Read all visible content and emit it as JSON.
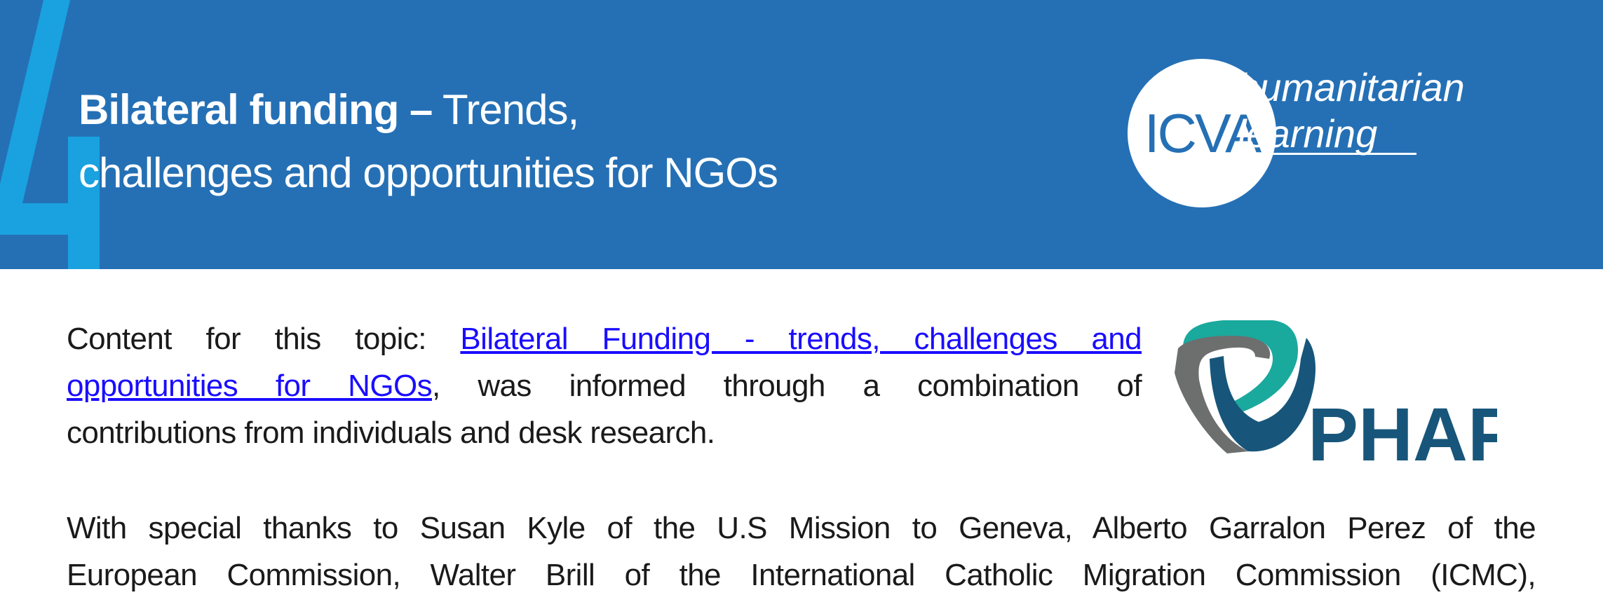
{
  "header": {
    "section_number": "4",
    "title_bold": "Bilateral funding –",
    "title_rest_line1": " Trends,",
    "title_line2": "challenges and opportunities for NGOs",
    "logo": {
      "text": "ICVA",
      "tagline_line1": "humanitarian",
      "tagline_line2": "learning"
    },
    "colors": {
      "background": "#2570b5",
      "numeral": "#1aa1e0"
    }
  },
  "body": {
    "para1": {
      "prefix": "Content for this topic: ",
      "link_line1": "Bilateral Funding - trends, challenges and",
      "link_line2": "opportunities for NGOs",
      "line2_rest": ", was informed through a combination of",
      "line3": "contributions from individuals and desk research."
    },
    "para2": {
      "line1": "With special thanks to Susan Kyle of the U.S Mission to Geneva, Alberto Garralon Perez of the",
      "line2": "European Commission, Walter Brill of the International Catholic Migration Commission (ICMC),"
    },
    "partner_logo": {
      "text": "PHAP",
      "colors": {
        "teal": "#1aa99d",
        "gray": "#6d6e6e",
        "navy": "#17567a"
      }
    }
  }
}
